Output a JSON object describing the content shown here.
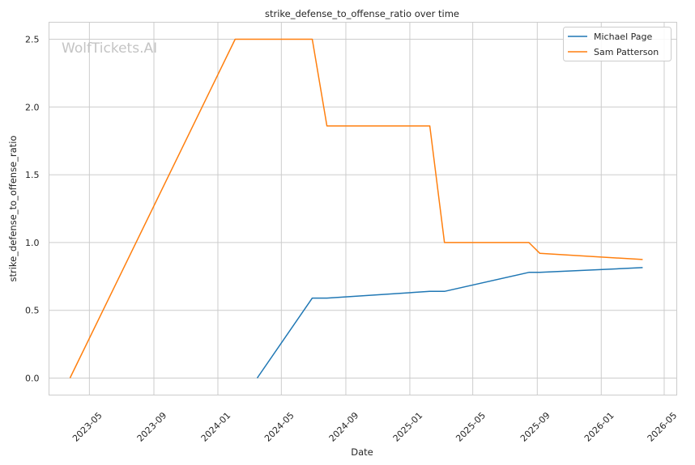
{
  "watermark": "WolfTickets.AI",
  "chart_data": {
    "type": "line",
    "title": "strike_defense_to_offense_ratio over time",
    "xlabel": "Date",
    "ylabel": "strike_defense_to_offense_ratio",
    "x_ticks": [
      "2023-05",
      "2023-09",
      "2024-01",
      "2024-05",
      "2024-09",
      "2025-01",
      "2025-05",
      "2025-09",
      "2026-01",
      "2026-05"
    ],
    "y_ticks": [
      "0.0",
      "0.5",
      "1.0",
      "1.5",
      "2.0",
      "2.5"
    ],
    "xlim": [
      "2023-02-13",
      "2026-05-25"
    ],
    "ylim": [
      -0.125,
      2.625
    ],
    "grid": true,
    "legend_position": "top-right",
    "series": [
      {
        "name": "Michael Page",
        "color": "#1f77b4",
        "points": [
          [
            "2024-03-16",
            0.0
          ],
          [
            "2024-06-29",
            0.59
          ],
          [
            "2024-07-27",
            0.59
          ],
          [
            "2025-02-08",
            0.64
          ],
          [
            "2025-03-08",
            0.64
          ],
          [
            "2025-08-16",
            0.78
          ],
          [
            "2025-09-06",
            0.78
          ],
          [
            "2026-03-21",
            0.815
          ]
        ]
      },
      {
        "name": "Sam Patterson",
        "color": "#ff7f0e",
        "points": [
          [
            "2023-03-25",
            0.0
          ],
          [
            "2024-02-03",
            2.5
          ],
          [
            "2024-06-29",
            2.5
          ],
          [
            "2024-07-27",
            1.86
          ],
          [
            "2025-02-08",
            1.86
          ],
          [
            "2025-03-08",
            1.0
          ],
          [
            "2025-08-16",
            1.0
          ],
          [
            "2025-09-06",
            0.92
          ],
          [
            "2026-03-21",
            0.875
          ]
        ]
      }
    ]
  }
}
